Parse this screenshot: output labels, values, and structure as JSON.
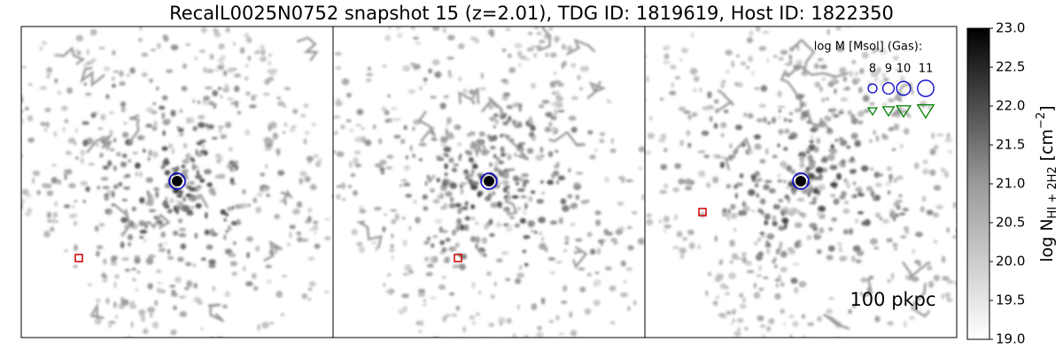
{
  "chart_data": {
    "type": "image",
    "title": "RecalL0025N0752 snapshot 15 (z=2.01), TDG ID: 1819619, Host ID: 1822350",
    "colorbar": {
      "label": "log N",
      "label_sub": "HI + 2H2",
      "label_unit": "[cm",
      "label_sup": "−2",
      "label_close": "]",
      "lim": [
        19.0,
        23.0
      ],
      "colormap": "gray_r",
      "ticks": [
        {
          "value": 19.0,
          "label": "19.0"
        },
        {
          "value": 19.5,
          "label": "19.5"
        },
        {
          "value": 20.0,
          "label": "20.0"
        },
        {
          "value": 20.5,
          "label": "20.5"
        },
        {
          "value": 21.0,
          "label": "21.0"
        },
        {
          "value": 21.5,
          "label": "21.5"
        },
        {
          "value": 22.0,
          "label": "22.0"
        },
        {
          "value": 22.5,
          "label": "22.5"
        },
        {
          "value": 23.0,
          "label": "23.0"
        }
      ]
    },
    "legend": {
      "title": "log M [Msol] (Gas):",
      "sizes": [
        8,
        9,
        10,
        11
      ],
      "host_color": "#0000cc",
      "tdg_color": "#008000"
    },
    "scale_bar": "100 pkpc"
  }
}
